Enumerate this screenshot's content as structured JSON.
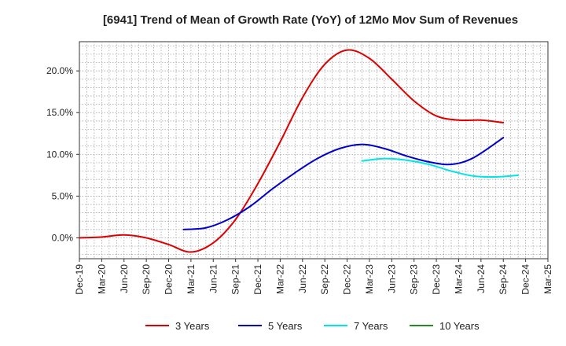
{
  "chart_data": {
    "type": "line",
    "title": "[6941]  Trend of Mean of Growth Rate (YoY) of 12Mo Mov Sum of Revenues",
    "xlabel": "",
    "ylabel": "",
    "x_ticks": [
      "Dec-19",
      "Mar-20",
      "Jun-20",
      "Sep-20",
      "Dec-20",
      "Mar-21",
      "Jun-21",
      "Sep-21",
      "Dec-21",
      "Mar-22",
      "Jun-22",
      "Sep-22",
      "Dec-22",
      "Mar-23",
      "Jun-23",
      "Sep-23",
      "Dec-23",
      "Mar-24",
      "Jun-24",
      "Sep-24",
      "Dec-24",
      "Mar-25"
    ],
    "y_ticks": [
      0,
      5,
      10,
      15,
      20
    ],
    "y_tick_labels": [
      "0.0%",
      "5.0%",
      "10.0%",
      "15.0%",
      "20.0%"
    ],
    "ylim": [
      -2.5,
      23.5
    ],
    "x_range_months": [
      0,
      63
    ],
    "grid": true,
    "legend_position": "bottom",
    "series": [
      {
        "name": "3 Years",
        "color": "#dd0000",
        "points": [
          [
            0,
            0.0
          ],
          [
            3,
            0.1
          ],
          [
            6,
            0.35
          ],
          [
            9,
            0.0
          ],
          [
            12,
            -0.8
          ],
          [
            15,
            -1.7
          ],
          [
            18,
            -0.6
          ],
          [
            21,
            2.2
          ],
          [
            24,
            6.5
          ],
          [
            27,
            11.5
          ],
          [
            30,
            16.8
          ],
          [
            33,
            20.8
          ],
          [
            36,
            22.5
          ],
          [
            39,
            21.5
          ],
          [
            42,
            19.0
          ],
          [
            45,
            16.4
          ],
          [
            48,
            14.6
          ],
          [
            51,
            14.1
          ],
          [
            54,
            14.1
          ],
          [
            57,
            13.8
          ]
        ]
      },
      {
        "name": "5 Years",
        "color": "#0000cc",
        "points": [
          [
            14,
            1.0
          ],
          [
            17,
            1.2
          ],
          [
            20,
            2.2
          ],
          [
            23,
            3.8
          ],
          [
            26,
            5.9
          ],
          [
            29,
            7.8
          ],
          [
            32,
            9.5
          ],
          [
            35,
            10.7
          ],
          [
            38,
            11.2
          ],
          [
            41,
            10.7
          ],
          [
            44,
            9.8
          ],
          [
            47,
            9.1
          ],
          [
            50,
            8.8
          ],
          [
            53,
            9.6
          ],
          [
            57,
            12.0
          ]
        ]
      },
      {
        "name": "7 Years",
        "color": "#00e5e5",
        "points": [
          [
            38,
            9.2
          ],
          [
            41,
            9.5
          ],
          [
            44,
            9.3
          ],
          [
            47,
            8.8
          ],
          [
            50,
            8.0
          ],
          [
            53,
            7.4
          ],
          [
            56,
            7.3
          ],
          [
            59,
            7.5
          ]
        ]
      },
      {
        "name": "10 Years",
        "color": "#228b22",
        "points": []
      }
    ]
  }
}
